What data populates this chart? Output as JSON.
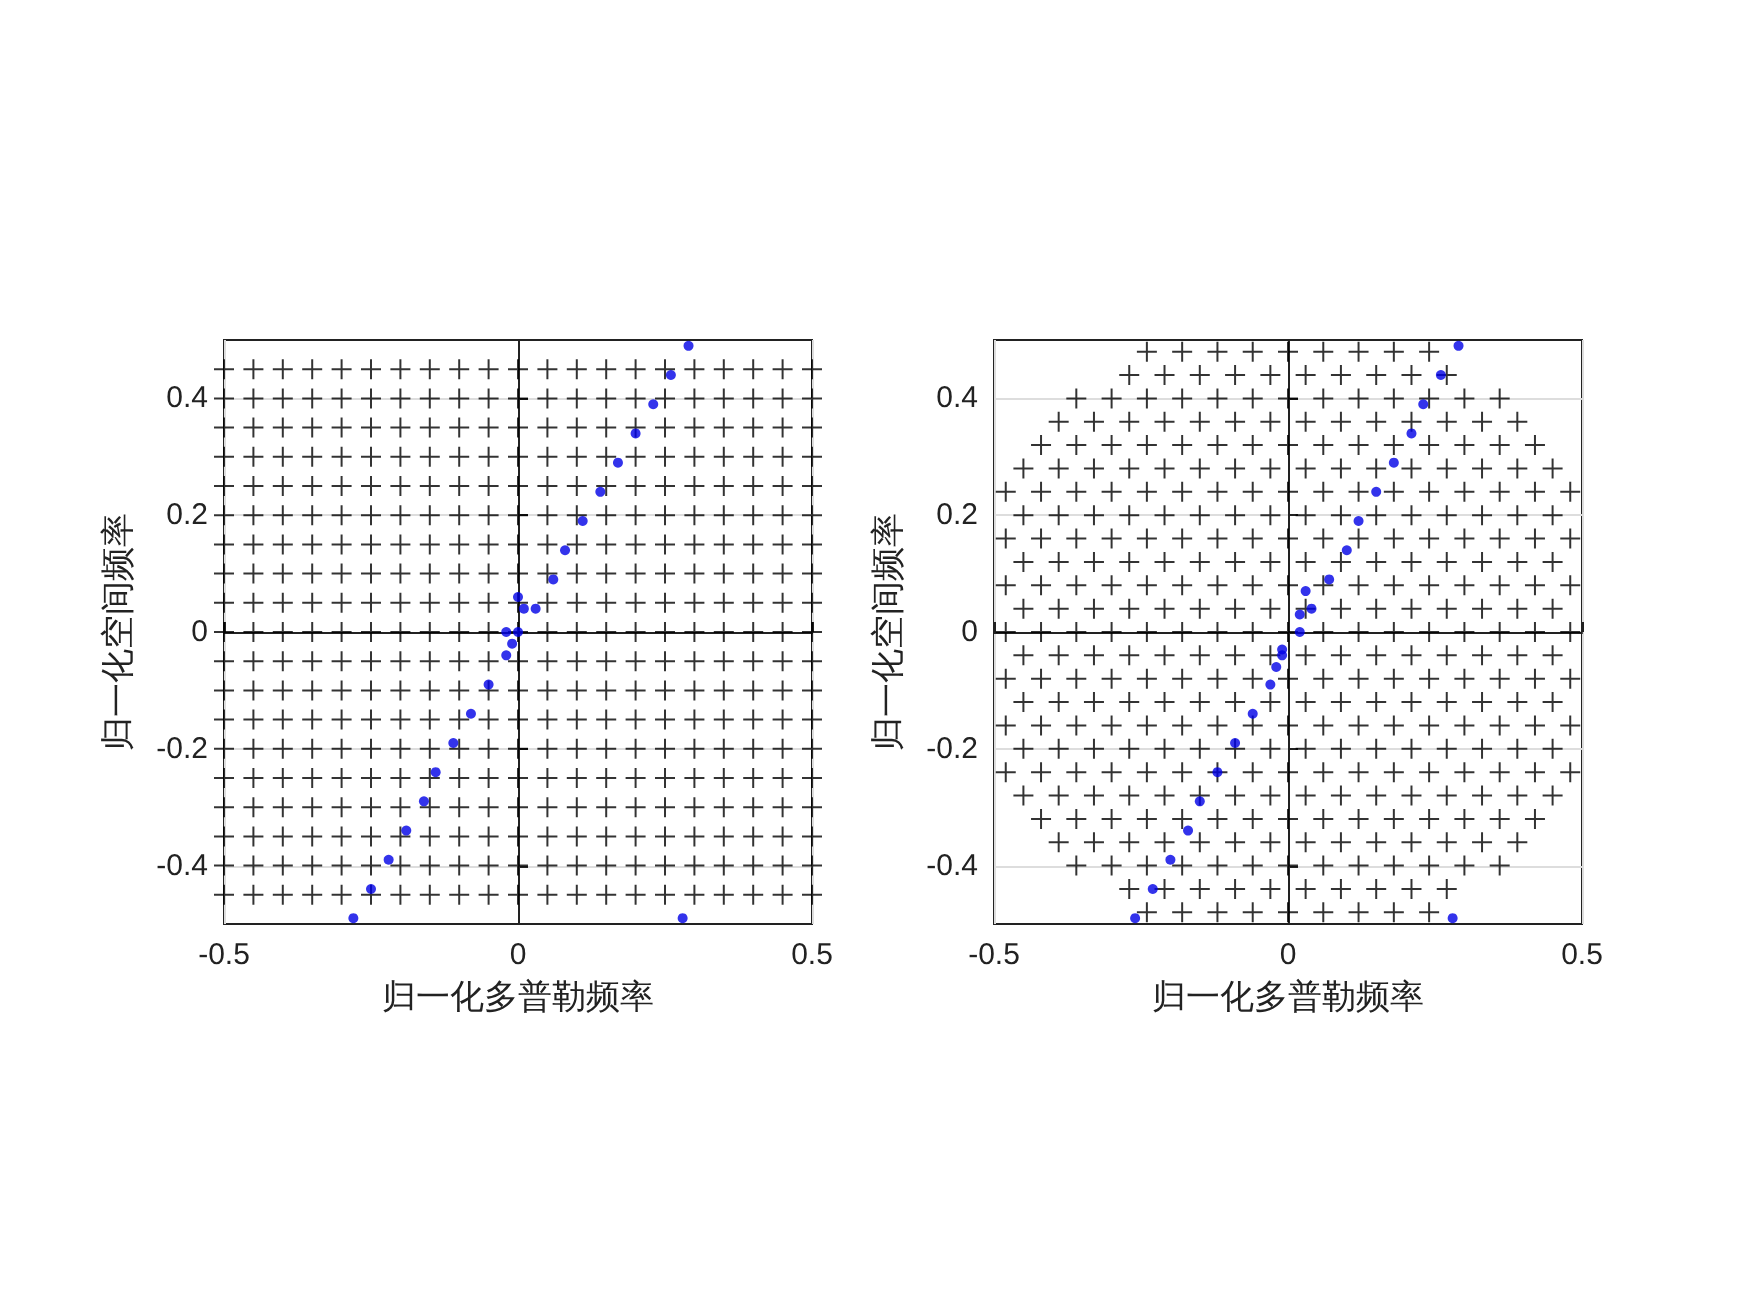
{
  "chart_data": [
    {
      "type": "scatter",
      "xlabel": "归一化多普勒频率",
      "ylabel": "归一化空间频率",
      "xlim": [
        -0.5,
        0.5
      ],
      "ylim": [
        -0.5,
        0.5
      ],
      "xticks": [
        -0.5,
        0,
        0.5
      ],
      "yticks": [
        -0.4,
        -0.2,
        0,
        0.2,
        0.4
      ],
      "grid": true,
      "series": [
        {
          "color": "#000000",
          "marker": "cross",
          "x": [
            -0.5,
            -0.45,
            -0.4,
            -0.35,
            -0.3,
            -0.25,
            -0.2,
            -0.15,
            -0.1,
            -0.05,
            0,
            0.05,
            0.1,
            0.15,
            0.2,
            0.25,
            0.3,
            0.35,
            0.4,
            0.45,
            0.5
          ],
          "values": [
            -0.45,
            -0.45,
            -0.45,
            -0.45,
            -0.45,
            -0.45,
            -0.45,
            -0.45,
            -0.45,
            -0.45,
            -0.45,
            -0.45,
            -0.45,
            -0.45,
            -0.45,
            -0.45,
            -0.45,
            -0.45,
            -0.45,
            -0.45,
            -0.45
          ]
        },
        {
          "color": "#000000",
          "marker": "cross",
          "x": [
            -0.5,
            -0.45,
            -0.4,
            -0.35,
            -0.3,
            -0.25,
            -0.2,
            -0.15,
            -0.1,
            -0.05,
            0,
            0.05,
            0.1,
            0.15,
            0.2,
            0.25,
            0.3,
            0.35,
            0.4,
            0.45,
            0.5
          ],
          "values": [
            -0.4,
            -0.4,
            -0.4,
            -0.4,
            -0.4,
            -0.4,
            -0.4,
            -0.4,
            -0.4,
            -0.4,
            -0.4,
            -0.4,
            -0.4,
            -0.4,
            -0.4,
            -0.4,
            -0.4,
            -0.4,
            -0.4,
            -0.4,
            -0.4
          ]
        },
        {
          "color": "#000000",
          "marker": "cross",
          "x": [
            -0.5,
            -0.45,
            -0.4,
            -0.35,
            -0.3,
            -0.25,
            -0.2,
            -0.15,
            -0.1,
            -0.05,
            0,
            0.05,
            0.1,
            0.15,
            0.2,
            0.25,
            0.3,
            0.35,
            0.4,
            0.45,
            0.5
          ],
          "values": [
            -0.35,
            -0.35,
            -0.35,
            -0.35,
            -0.35,
            -0.35,
            -0.35,
            -0.35,
            -0.35,
            -0.35,
            -0.35,
            -0.35,
            -0.35,
            -0.35,
            -0.35,
            -0.35,
            -0.35,
            -0.35,
            -0.35,
            -0.35,
            -0.35
          ]
        },
        {
          "color": "#000000",
          "marker": "cross",
          "x": [
            -0.5,
            -0.45,
            -0.4,
            -0.35,
            -0.3,
            -0.25,
            -0.2,
            -0.15,
            -0.1,
            -0.05,
            0,
            0.05,
            0.1,
            0.15,
            0.2,
            0.25,
            0.3,
            0.35,
            0.4,
            0.45,
            0.5
          ],
          "values": [
            -0.3,
            -0.3,
            -0.3,
            -0.3,
            -0.3,
            -0.3,
            -0.3,
            -0.3,
            -0.3,
            -0.3,
            -0.3,
            -0.3,
            -0.3,
            -0.3,
            -0.3,
            -0.3,
            -0.3,
            -0.3,
            -0.3,
            -0.3,
            -0.3
          ]
        },
        {
          "color": "#000000",
          "marker": "cross",
          "x": [
            -0.5,
            -0.45,
            -0.4,
            -0.35,
            -0.3,
            -0.25,
            -0.2,
            -0.15,
            -0.1,
            -0.05,
            0,
            0.05,
            0.1,
            0.15,
            0.2,
            0.25,
            0.3,
            0.35,
            0.4,
            0.45,
            0.5
          ],
          "values": [
            -0.25,
            -0.25,
            -0.25,
            -0.25,
            -0.25,
            -0.25,
            -0.25,
            -0.25,
            -0.25,
            -0.25,
            -0.25,
            -0.25,
            -0.25,
            -0.25,
            -0.25,
            -0.25,
            -0.25,
            -0.25,
            -0.25,
            -0.25,
            -0.25
          ]
        },
        {
          "color": "#000000",
          "marker": "cross",
          "x": [
            -0.5,
            -0.45,
            -0.4,
            -0.35,
            -0.3,
            -0.25,
            -0.2,
            -0.15,
            -0.1,
            -0.05,
            0,
            0.05,
            0.1,
            0.15,
            0.2,
            0.25,
            0.3,
            0.35,
            0.4,
            0.45,
            0.5
          ],
          "values": [
            -0.2,
            -0.2,
            -0.2,
            -0.2,
            -0.2,
            -0.2,
            -0.2,
            -0.2,
            -0.2,
            -0.2,
            -0.2,
            -0.2,
            -0.2,
            -0.2,
            -0.2,
            -0.2,
            -0.2,
            -0.2,
            -0.2,
            -0.2,
            -0.2
          ]
        },
        {
          "color": "#000000",
          "marker": "cross",
          "x": [
            -0.5,
            -0.45,
            -0.4,
            -0.35,
            -0.3,
            -0.25,
            -0.2,
            -0.15,
            -0.1,
            -0.05,
            0,
            0.05,
            0.1,
            0.15,
            0.2,
            0.25,
            0.3,
            0.35,
            0.4,
            0.45,
            0.5
          ],
          "values": [
            -0.15,
            -0.15,
            -0.15,
            -0.15,
            -0.15,
            -0.15,
            -0.15,
            -0.15,
            -0.15,
            -0.15,
            -0.15,
            -0.15,
            -0.15,
            -0.15,
            -0.15,
            -0.15,
            -0.15,
            -0.15,
            -0.15,
            -0.15,
            -0.15
          ]
        },
        {
          "color": "#000000",
          "marker": "cross",
          "x": [
            -0.5,
            -0.45,
            -0.4,
            -0.35,
            -0.3,
            -0.25,
            -0.2,
            -0.15,
            -0.1,
            -0.05,
            0,
            0.05,
            0.1,
            0.15,
            0.2,
            0.25,
            0.3,
            0.35,
            0.4,
            0.45,
            0.5
          ],
          "values": [
            -0.1,
            -0.1,
            -0.1,
            -0.1,
            -0.1,
            -0.1,
            -0.1,
            -0.1,
            -0.1,
            -0.1,
            -0.1,
            -0.1,
            -0.1,
            -0.1,
            -0.1,
            -0.1,
            -0.1,
            -0.1,
            -0.1,
            -0.1,
            -0.1
          ]
        },
        {
          "color": "#000000",
          "marker": "cross",
          "x": [
            -0.5,
            -0.45,
            -0.4,
            -0.35,
            -0.3,
            -0.25,
            -0.2,
            -0.15,
            -0.1,
            -0.05,
            0,
            0.05,
            0.1,
            0.15,
            0.2,
            0.25,
            0.3,
            0.35,
            0.4,
            0.45,
            0.5
          ],
          "values": [
            -0.05,
            -0.05,
            -0.05,
            -0.05,
            -0.05,
            -0.05,
            -0.05,
            -0.05,
            -0.05,
            -0.05,
            -0.05,
            -0.05,
            -0.05,
            -0.05,
            -0.05,
            -0.05,
            -0.05,
            -0.05,
            -0.05,
            -0.05,
            -0.05
          ]
        },
        {
          "color": "#000000",
          "marker": "cross",
          "x": [
            -0.5,
            -0.45,
            -0.4,
            -0.35,
            -0.3,
            -0.25,
            -0.2,
            -0.15,
            -0.1,
            -0.05,
            0,
            0.05,
            0.1,
            0.15,
            0.2,
            0.25,
            0.3,
            0.35,
            0.4,
            0.45,
            0.5
          ],
          "values": [
            0,
            0,
            0,
            0,
            0,
            0,
            0,
            0,
            0,
            0,
            0,
            0,
            0,
            0,
            0,
            0,
            0,
            0,
            0,
            0,
            0
          ]
        },
        {
          "color": "#000000",
          "marker": "cross",
          "x": [
            -0.5,
            -0.45,
            -0.4,
            -0.35,
            -0.3,
            -0.25,
            -0.2,
            -0.15,
            -0.1,
            -0.05,
            0,
            0.05,
            0.1,
            0.15,
            0.2,
            0.25,
            0.3,
            0.35,
            0.4,
            0.45,
            0.5
          ],
          "values": [
            0.05,
            0.05,
            0.05,
            0.05,
            0.05,
            0.05,
            0.05,
            0.05,
            0.05,
            0.05,
            0.05,
            0.05,
            0.05,
            0.05,
            0.05,
            0.05,
            0.05,
            0.05,
            0.05,
            0.05,
            0.05
          ]
        },
        {
          "color": "#000000",
          "marker": "cross",
          "x": [
            -0.5,
            -0.45,
            -0.4,
            -0.35,
            -0.3,
            -0.25,
            -0.2,
            -0.15,
            -0.1,
            -0.05,
            0,
            0.05,
            0.1,
            0.15,
            0.2,
            0.25,
            0.3,
            0.35,
            0.4,
            0.45,
            0.5
          ],
          "values": [
            0.1,
            0.1,
            0.1,
            0.1,
            0.1,
            0.1,
            0.1,
            0.1,
            0.1,
            0.1,
            0.1,
            0.1,
            0.1,
            0.1,
            0.1,
            0.1,
            0.1,
            0.1,
            0.1,
            0.1,
            0.1
          ]
        },
        {
          "color": "#000000",
          "marker": "cross",
          "x": [
            -0.5,
            -0.45,
            -0.4,
            -0.35,
            -0.3,
            -0.25,
            -0.2,
            -0.15,
            -0.1,
            -0.05,
            0,
            0.05,
            0.1,
            0.15,
            0.2,
            0.25,
            0.3,
            0.35,
            0.4,
            0.45,
            0.5
          ],
          "values": [
            0.15,
            0.15,
            0.15,
            0.15,
            0.15,
            0.15,
            0.15,
            0.15,
            0.15,
            0.15,
            0.15,
            0.15,
            0.15,
            0.15,
            0.15,
            0.15,
            0.15,
            0.15,
            0.15,
            0.15,
            0.15
          ]
        },
        {
          "color": "#000000",
          "marker": "cross",
          "x": [
            -0.5,
            -0.45,
            -0.4,
            -0.35,
            -0.3,
            -0.25,
            -0.2,
            -0.15,
            -0.1,
            -0.05,
            0,
            0.05,
            0.1,
            0.15,
            0.2,
            0.25,
            0.3,
            0.35,
            0.4,
            0.45,
            0.5
          ],
          "values": [
            0.2,
            0.2,
            0.2,
            0.2,
            0.2,
            0.2,
            0.2,
            0.2,
            0.2,
            0.2,
            0.2,
            0.2,
            0.2,
            0.2,
            0.2,
            0.2,
            0.2,
            0.2,
            0.2,
            0.2,
            0.2
          ]
        },
        {
          "color": "#000000",
          "marker": "cross",
          "x": [
            -0.5,
            -0.45,
            -0.4,
            -0.35,
            -0.3,
            -0.25,
            -0.2,
            -0.15,
            -0.1,
            -0.05,
            0,
            0.05,
            0.1,
            0.15,
            0.2,
            0.25,
            0.3,
            0.35,
            0.4,
            0.45,
            0.5
          ],
          "values": [
            0.25,
            0.25,
            0.25,
            0.25,
            0.25,
            0.25,
            0.25,
            0.25,
            0.25,
            0.25,
            0.25,
            0.25,
            0.25,
            0.25,
            0.25,
            0.25,
            0.25,
            0.25,
            0.25,
            0.25,
            0.25
          ]
        },
        {
          "color": "#000000",
          "marker": "cross",
          "x": [
            -0.5,
            -0.45,
            -0.4,
            -0.35,
            -0.3,
            -0.25,
            -0.2,
            -0.15,
            -0.1,
            -0.05,
            0,
            0.05,
            0.1,
            0.15,
            0.2,
            0.25,
            0.3,
            0.35,
            0.4,
            0.45,
            0.5
          ],
          "values": [
            0.3,
            0.3,
            0.3,
            0.3,
            0.3,
            0.3,
            0.3,
            0.3,
            0.3,
            0.3,
            0.3,
            0.3,
            0.3,
            0.3,
            0.3,
            0.3,
            0.3,
            0.3,
            0.3,
            0.3,
            0.3
          ]
        },
        {
          "color": "#000000",
          "marker": "cross",
          "x": [
            -0.5,
            -0.45,
            -0.4,
            -0.35,
            -0.3,
            -0.25,
            -0.2,
            -0.15,
            -0.1,
            -0.05,
            0,
            0.05,
            0.1,
            0.15,
            0.2,
            0.25,
            0.3,
            0.35,
            0.4,
            0.45,
            0.5
          ],
          "values": [
            0.35,
            0.35,
            0.35,
            0.35,
            0.35,
            0.35,
            0.35,
            0.35,
            0.35,
            0.35,
            0.35,
            0.35,
            0.35,
            0.35,
            0.35,
            0.35,
            0.35,
            0.35,
            0.35,
            0.35,
            0.35
          ]
        },
        {
          "color": "#000000",
          "marker": "cross",
          "x": [
            -0.5,
            -0.45,
            -0.4,
            -0.35,
            -0.3,
            -0.25,
            -0.2,
            -0.15,
            -0.1,
            -0.05,
            0,
            0.05,
            0.1,
            0.15,
            0.2,
            0.25,
            0.3,
            0.35,
            0.4,
            0.45,
            0.5
          ],
          "values": [
            0.4,
            0.4,
            0.4,
            0.4,
            0.4,
            0.4,
            0.4,
            0.4,
            0.4,
            0.4,
            0.4,
            0.4,
            0.4,
            0.4,
            0.4,
            0.4,
            0.4,
            0.4,
            0.4,
            0.4,
            0.4
          ]
        },
        {
          "color": "#000000",
          "marker": "cross",
          "x": [
            -0.5,
            -0.45,
            -0.4,
            -0.35,
            -0.3,
            -0.25,
            -0.2,
            -0.15,
            -0.1,
            -0.05,
            0,
            0.05,
            0.1,
            0.15,
            0.2,
            0.25,
            0.3,
            0.35,
            0.4,
            0.45,
            0.5
          ],
          "values": [
            0.45,
            0.45,
            0.45,
            0.45,
            0.45,
            0.45,
            0.45,
            0.45,
            0.45,
            0.45,
            0.45,
            0.45,
            0.45,
            0.45,
            0.45,
            0.45,
            0.45,
            0.45,
            0.45,
            0.45,
            0.45
          ]
        },
        {
          "color": "#0000e6",
          "marker": "circle",
          "x": [
            -0.28,
            -0.25,
            -0.22,
            -0.19,
            -0.16,
            -0.14,
            -0.11,
            -0.08,
            -0.05,
            -0.02,
            0,
            0.03,
            0.06,
            0.08,
            0.11,
            0.14,
            0.17,
            0.2,
            0.23,
            0.26,
            0.29,
            0.01,
            -0.01,
            0,
            -0.02,
            0.28
          ],
          "values": [
            -0.49,
            -0.44,
            -0.39,
            -0.34,
            -0.29,
            -0.24,
            -0.19,
            -0.14,
            -0.09,
            -0.04,
            0,
            0.04,
            0.09,
            0.14,
            0.19,
            0.24,
            0.29,
            0.34,
            0.39,
            0.44,
            0.49,
            0.04,
            -0.02,
            0.06,
            0,
            -0.49
          ]
        }
      ]
    },
    {
      "type": "scatter",
      "xlabel": "归一化多普勒频率",
      "ylabel": "归一化空间频率",
      "xlim": [
        -0.5,
        0.5
      ],
      "ylim": [
        -0.5,
        0.5
      ],
      "xticks": [
        -0.5,
        0,
        0.5
      ],
      "yticks": [
        -0.4,
        -0.2,
        0,
        0.2,
        0.4
      ],
      "grid": true,
      "series": [
        {
          "color": "#000000",
          "marker": "cross",
          "x": [
            -0.24,
            -0.18,
            -0.12,
            -0.06,
            0,
            0.06,
            0.12,
            0.18,
            0.24
          ],
          "values": [
            -0.48,
            -0.48,
            -0.48,
            -0.48,
            -0.48,
            -0.48,
            -0.48,
            -0.48,
            -0.48
          ]
        },
        {
          "color": "#000000",
          "marker": "cross",
          "x": [
            -0.27,
            -0.21,
            -0.15,
            -0.09,
            -0.03,
            0.03,
            0.09,
            0.15,
            0.21,
            0.27
          ],
          "values": [
            -0.44,
            -0.44,
            -0.44,
            -0.44,
            -0.44,
            -0.44,
            -0.44,
            -0.44,
            -0.44,
            -0.44
          ]
        },
        {
          "color": "#000000",
          "marker": "cross",
          "x": [
            -0.36,
            -0.3,
            -0.24,
            -0.18,
            -0.12,
            -0.06,
            0,
            0.06,
            0.12,
            0.18,
            0.24,
            0.3,
            0.36
          ],
          "values": [
            -0.4,
            -0.4,
            -0.4,
            -0.4,
            -0.4,
            -0.4,
            -0.4,
            -0.4,
            -0.4,
            -0.4,
            -0.4,
            -0.4,
            -0.4
          ]
        },
        {
          "color": "#000000",
          "marker": "cross",
          "x": [
            -0.39,
            -0.33,
            -0.27,
            -0.21,
            -0.15,
            -0.09,
            -0.03,
            0.03,
            0.09,
            0.15,
            0.21,
            0.27,
            0.33,
            0.39
          ],
          "values": [
            -0.36,
            -0.36,
            -0.36,
            -0.36,
            -0.36,
            -0.36,
            -0.36,
            -0.36,
            -0.36,
            -0.36,
            -0.36,
            -0.36,
            -0.36,
            -0.36
          ]
        },
        {
          "color": "#000000",
          "marker": "cross",
          "x": [
            -0.42,
            -0.36,
            -0.3,
            -0.24,
            -0.18,
            -0.12,
            -0.06,
            0,
            0.06,
            0.12,
            0.18,
            0.24,
            0.3,
            0.36,
            0.42
          ],
          "values": [
            -0.32,
            -0.32,
            -0.32,
            -0.32,
            -0.32,
            -0.32,
            -0.32,
            -0.32,
            -0.32,
            -0.32,
            -0.32,
            -0.32,
            -0.32,
            -0.32,
            -0.32
          ]
        },
        {
          "color": "#000000",
          "marker": "cross",
          "x": [
            -0.45,
            -0.39,
            -0.33,
            -0.27,
            -0.21,
            -0.15,
            -0.09,
            -0.03,
            0.03,
            0.09,
            0.15,
            0.21,
            0.27,
            0.33,
            0.39,
            0.45
          ],
          "values": [
            -0.28,
            -0.28,
            -0.28,
            -0.28,
            -0.28,
            -0.28,
            -0.28,
            -0.28,
            -0.28,
            -0.28,
            -0.28,
            -0.28,
            -0.28,
            -0.28,
            -0.28,
            -0.28
          ]
        },
        {
          "color": "#000000",
          "marker": "cross",
          "x": [
            -0.48,
            -0.42,
            -0.36,
            -0.3,
            -0.24,
            -0.18,
            -0.12,
            -0.06,
            0,
            0.06,
            0.12,
            0.18,
            0.24,
            0.3,
            0.36,
            0.42,
            0.48
          ],
          "values": [
            -0.24,
            -0.24,
            -0.24,
            -0.24,
            -0.24,
            -0.24,
            -0.24,
            -0.24,
            -0.24,
            -0.24,
            -0.24,
            -0.24,
            -0.24,
            -0.24,
            -0.24,
            -0.24,
            -0.24
          ]
        },
        {
          "color": "#000000",
          "marker": "cross",
          "x": [
            -0.45,
            -0.39,
            -0.33,
            -0.27,
            -0.21,
            -0.15,
            -0.09,
            -0.03,
            0.03,
            0.09,
            0.15,
            0.21,
            0.27,
            0.33,
            0.39,
            0.45
          ],
          "values": [
            -0.2,
            -0.2,
            -0.2,
            -0.2,
            -0.2,
            -0.2,
            -0.2,
            -0.2,
            -0.2,
            -0.2,
            -0.2,
            -0.2,
            -0.2,
            -0.2,
            -0.2,
            -0.2
          ]
        },
        {
          "color": "#000000",
          "marker": "cross",
          "x": [
            -0.48,
            -0.42,
            -0.36,
            -0.3,
            -0.24,
            -0.18,
            -0.12,
            -0.06,
            0,
            0.06,
            0.12,
            0.18,
            0.24,
            0.3,
            0.36,
            0.42,
            0.48
          ],
          "values": [
            -0.16,
            -0.16,
            -0.16,
            -0.16,
            -0.16,
            -0.16,
            -0.16,
            -0.16,
            -0.16,
            -0.16,
            -0.16,
            -0.16,
            -0.16,
            -0.16,
            -0.16,
            -0.16,
            -0.16
          ]
        },
        {
          "color": "#000000",
          "marker": "cross",
          "x": [
            -0.45,
            -0.39,
            -0.33,
            -0.27,
            -0.21,
            -0.15,
            -0.09,
            -0.03,
            0.03,
            0.09,
            0.15,
            0.21,
            0.27,
            0.33,
            0.39,
            0.45
          ],
          "values": [
            -0.12,
            -0.12,
            -0.12,
            -0.12,
            -0.12,
            -0.12,
            -0.12,
            -0.12,
            -0.12,
            -0.12,
            -0.12,
            -0.12,
            -0.12,
            -0.12,
            -0.12,
            -0.12
          ]
        },
        {
          "color": "#000000",
          "marker": "cross",
          "x": [
            -0.48,
            -0.42,
            -0.36,
            -0.3,
            -0.24,
            -0.18,
            -0.12,
            -0.06,
            0,
            0.06,
            0.12,
            0.18,
            0.24,
            0.3,
            0.36,
            0.42,
            0.48
          ],
          "values": [
            -0.08,
            -0.08,
            -0.08,
            -0.08,
            -0.08,
            -0.08,
            -0.08,
            -0.08,
            -0.08,
            -0.08,
            -0.08,
            -0.08,
            -0.08,
            -0.08,
            -0.08,
            -0.08,
            -0.08
          ]
        },
        {
          "color": "#000000",
          "marker": "cross",
          "x": [
            -0.45,
            -0.39,
            -0.33,
            -0.27,
            -0.21,
            -0.15,
            -0.09,
            -0.03,
            0.03,
            0.09,
            0.15,
            0.21,
            0.27,
            0.33,
            0.39,
            0.45
          ],
          "values": [
            -0.04,
            -0.04,
            -0.04,
            -0.04,
            -0.04,
            -0.04,
            -0.04,
            -0.04,
            -0.04,
            -0.04,
            -0.04,
            -0.04,
            -0.04,
            -0.04,
            -0.04,
            -0.04
          ]
        },
        {
          "color": "#000000",
          "marker": "cross",
          "x": [
            -0.48,
            -0.42,
            -0.36,
            -0.3,
            -0.24,
            -0.18,
            -0.12,
            -0.06,
            0,
            0.06,
            0.12,
            0.18,
            0.24,
            0.3,
            0.36,
            0.42,
            0.48
          ],
          "values": [
            0,
            0,
            0,
            0,
            0,
            0,
            0,
            0,
            0,
            0,
            0,
            0,
            0,
            0,
            0,
            0,
            0
          ]
        },
        {
          "color": "#000000",
          "marker": "cross",
          "x": [
            -0.45,
            -0.39,
            -0.33,
            -0.27,
            -0.21,
            -0.15,
            -0.09,
            -0.03,
            0.03,
            0.09,
            0.15,
            0.21,
            0.27,
            0.33,
            0.39,
            0.45
          ],
          "values": [
            0.04,
            0.04,
            0.04,
            0.04,
            0.04,
            0.04,
            0.04,
            0.04,
            0.04,
            0.04,
            0.04,
            0.04,
            0.04,
            0.04,
            0.04,
            0.04
          ]
        },
        {
          "color": "#000000",
          "marker": "cross",
          "x": [
            -0.48,
            -0.42,
            -0.36,
            -0.3,
            -0.24,
            -0.18,
            -0.12,
            -0.06,
            0,
            0.06,
            0.12,
            0.18,
            0.24,
            0.3,
            0.36,
            0.42,
            0.48
          ],
          "values": [
            0.08,
            0.08,
            0.08,
            0.08,
            0.08,
            0.08,
            0.08,
            0.08,
            0.08,
            0.08,
            0.08,
            0.08,
            0.08,
            0.08,
            0.08,
            0.08,
            0.08
          ]
        },
        {
          "color": "#000000",
          "marker": "cross",
          "x": [
            -0.45,
            -0.39,
            -0.33,
            -0.27,
            -0.21,
            -0.15,
            -0.09,
            -0.03,
            0.03,
            0.09,
            0.15,
            0.21,
            0.27,
            0.33,
            0.39,
            0.45
          ],
          "values": [
            0.12,
            0.12,
            0.12,
            0.12,
            0.12,
            0.12,
            0.12,
            0.12,
            0.12,
            0.12,
            0.12,
            0.12,
            0.12,
            0.12,
            0.12,
            0.12
          ]
        },
        {
          "color": "#000000",
          "marker": "cross",
          "x": [
            -0.48,
            -0.42,
            -0.36,
            -0.3,
            -0.24,
            -0.18,
            -0.12,
            -0.06,
            0,
            0.06,
            0.12,
            0.18,
            0.24,
            0.3,
            0.36,
            0.42,
            0.48
          ],
          "values": [
            0.16,
            0.16,
            0.16,
            0.16,
            0.16,
            0.16,
            0.16,
            0.16,
            0.16,
            0.16,
            0.16,
            0.16,
            0.16,
            0.16,
            0.16,
            0.16,
            0.16
          ]
        },
        {
          "color": "#000000",
          "marker": "cross",
          "x": [
            -0.45,
            -0.39,
            -0.33,
            -0.27,
            -0.21,
            -0.15,
            -0.09,
            -0.03,
            0.03,
            0.09,
            0.15,
            0.21,
            0.27,
            0.33,
            0.39,
            0.45
          ],
          "values": [
            0.2,
            0.2,
            0.2,
            0.2,
            0.2,
            0.2,
            0.2,
            0.2,
            0.2,
            0.2,
            0.2,
            0.2,
            0.2,
            0.2,
            0.2,
            0.2
          ]
        },
        {
          "color": "#000000",
          "marker": "cross",
          "x": [
            -0.48,
            -0.42,
            -0.36,
            -0.3,
            -0.24,
            -0.18,
            -0.12,
            -0.06,
            0,
            0.06,
            0.12,
            0.18,
            0.24,
            0.3,
            0.36,
            0.42,
            0.48
          ],
          "values": [
            0.24,
            0.24,
            0.24,
            0.24,
            0.24,
            0.24,
            0.24,
            0.24,
            0.24,
            0.24,
            0.24,
            0.24,
            0.24,
            0.24,
            0.24,
            0.24,
            0.24
          ]
        },
        {
          "color": "#000000",
          "marker": "cross",
          "x": [
            -0.45,
            -0.39,
            -0.33,
            -0.27,
            -0.21,
            -0.15,
            -0.09,
            -0.03,
            0.03,
            0.09,
            0.15,
            0.21,
            0.27,
            0.33,
            0.39,
            0.45
          ],
          "values": [
            0.28,
            0.28,
            0.28,
            0.28,
            0.28,
            0.28,
            0.28,
            0.28,
            0.28,
            0.28,
            0.28,
            0.28,
            0.28,
            0.28,
            0.28,
            0.28
          ]
        },
        {
          "color": "#000000",
          "marker": "cross",
          "x": [
            -0.42,
            -0.36,
            -0.3,
            -0.24,
            -0.18,
            -0.12,
            -0.06,
            0,
            0.06,
            0.12,
            0.18,
            0.24,
            0.3,
            0.36,
            0.42
          ],
          "values": [
            0.32,
            0.32,
            0.32,
            0.32,
            0.32,
            0.32,
            0.32,
            0.32,
            0.32,
            0.32,
            0.32,
            0.32,
            0.32,
            0.32,
            0.32
          ]
        },
        {
          "color": "#000000",
          "marker": "cross",
          "x": [
            -0.39,
            -0.33,
            -0.27,
            -0.21,
            -0.15,
            -0.09,
            -0.03,
            0.03,
            0.09,
            0.15,
            0.21,
            0.27,
            0.33,
            0.39
          ],
          "values": [
            0.36,
            0.36,
            0.36,
            0.36,
            0.36,
            0.36,
            0.36,
            0.36,
            0.36,
            0.36,
            0.36,
            0.36,
            0.36,
            0.36
          ]
        },
        {
          "color": "#000000",
          "marker": "cross",
          "x": [
            -0.36,
            -0.3,
            -0.24,
            -0.18,
            -0.12,
            -0.06,
            0,
            0.06,
            0.12,
            0.18,
            0.24,
            0.3,
            0.36
          ],
          "values": [
            0.4,
            0.4,
            0.4,
            0.4,
            0.4,
            0.4,
            0.4,
            0.4,
            0.4,
            0.4,
            0.4,
            0.4,
            0.4
          ]
        },
        {
          "color": "#000000",
          "marker": "cross",
          "x": [
            -0.27,
            -0.21,
            -0.15,
            -0.09,
            -0.03,
            0.03,
            0.09,
            0.15,
            0.21,
            0.27
          ],
          "values": [
            0.44,
            0.44,
            0.44,
            0.44,
            0.44,
            0.44,
            0.44,
            0.44,
            0.44,
            0.44
          ]
        },
        {
          "color": "#000000",
          "marker": "cross",
          "x": [
            -0.24,
            -0.18,
            -0.12,
            -0.06,
            0,
            0.06,
            0.12,
            0.18,
            0.24
          ],
          "values": [
            0.48,
            0.48,
            0.48,
            0.48,
            0.48,
            0.48,
            0.48,
            0.48,
            0.48
          ]
        },
        {
          "color": "#0000e6",
          "marker": "circle",
          "x": [
            -0.26,
            -0.23,
            -0.2,
            -0.17,
            -0.15,
            -0.12,
            -0.09,
            -0.06,
            -0.03,
            -0.01,
            0.02,
            0.04,
            0.07,
            0.1,
            0.12,
            0.15,
            0.18,
            0.21,
            0.23,
            0.26,
            0.29,
            0.03,
            -0.01,
            0.02,
            -0.02,
            0.28
          ],
          "values": [
            -0.49,
            -0.44,
            -0.39,
            -0.34,
            -0.29,
            -0.24,
            -0.19,
            -0.14,
            -0.09,
            -0.04,
            0,
            0.04,
            0.09,
            0.14,
            0.19,
            0.24,
            0.29,
            0.34,
            0.39,
            0.44,
            0.49,
            0.07,
            -0.03,
            0.03,
            -0.06,
            -0.49
          ]
        }
      ]
    }
  ]
}
